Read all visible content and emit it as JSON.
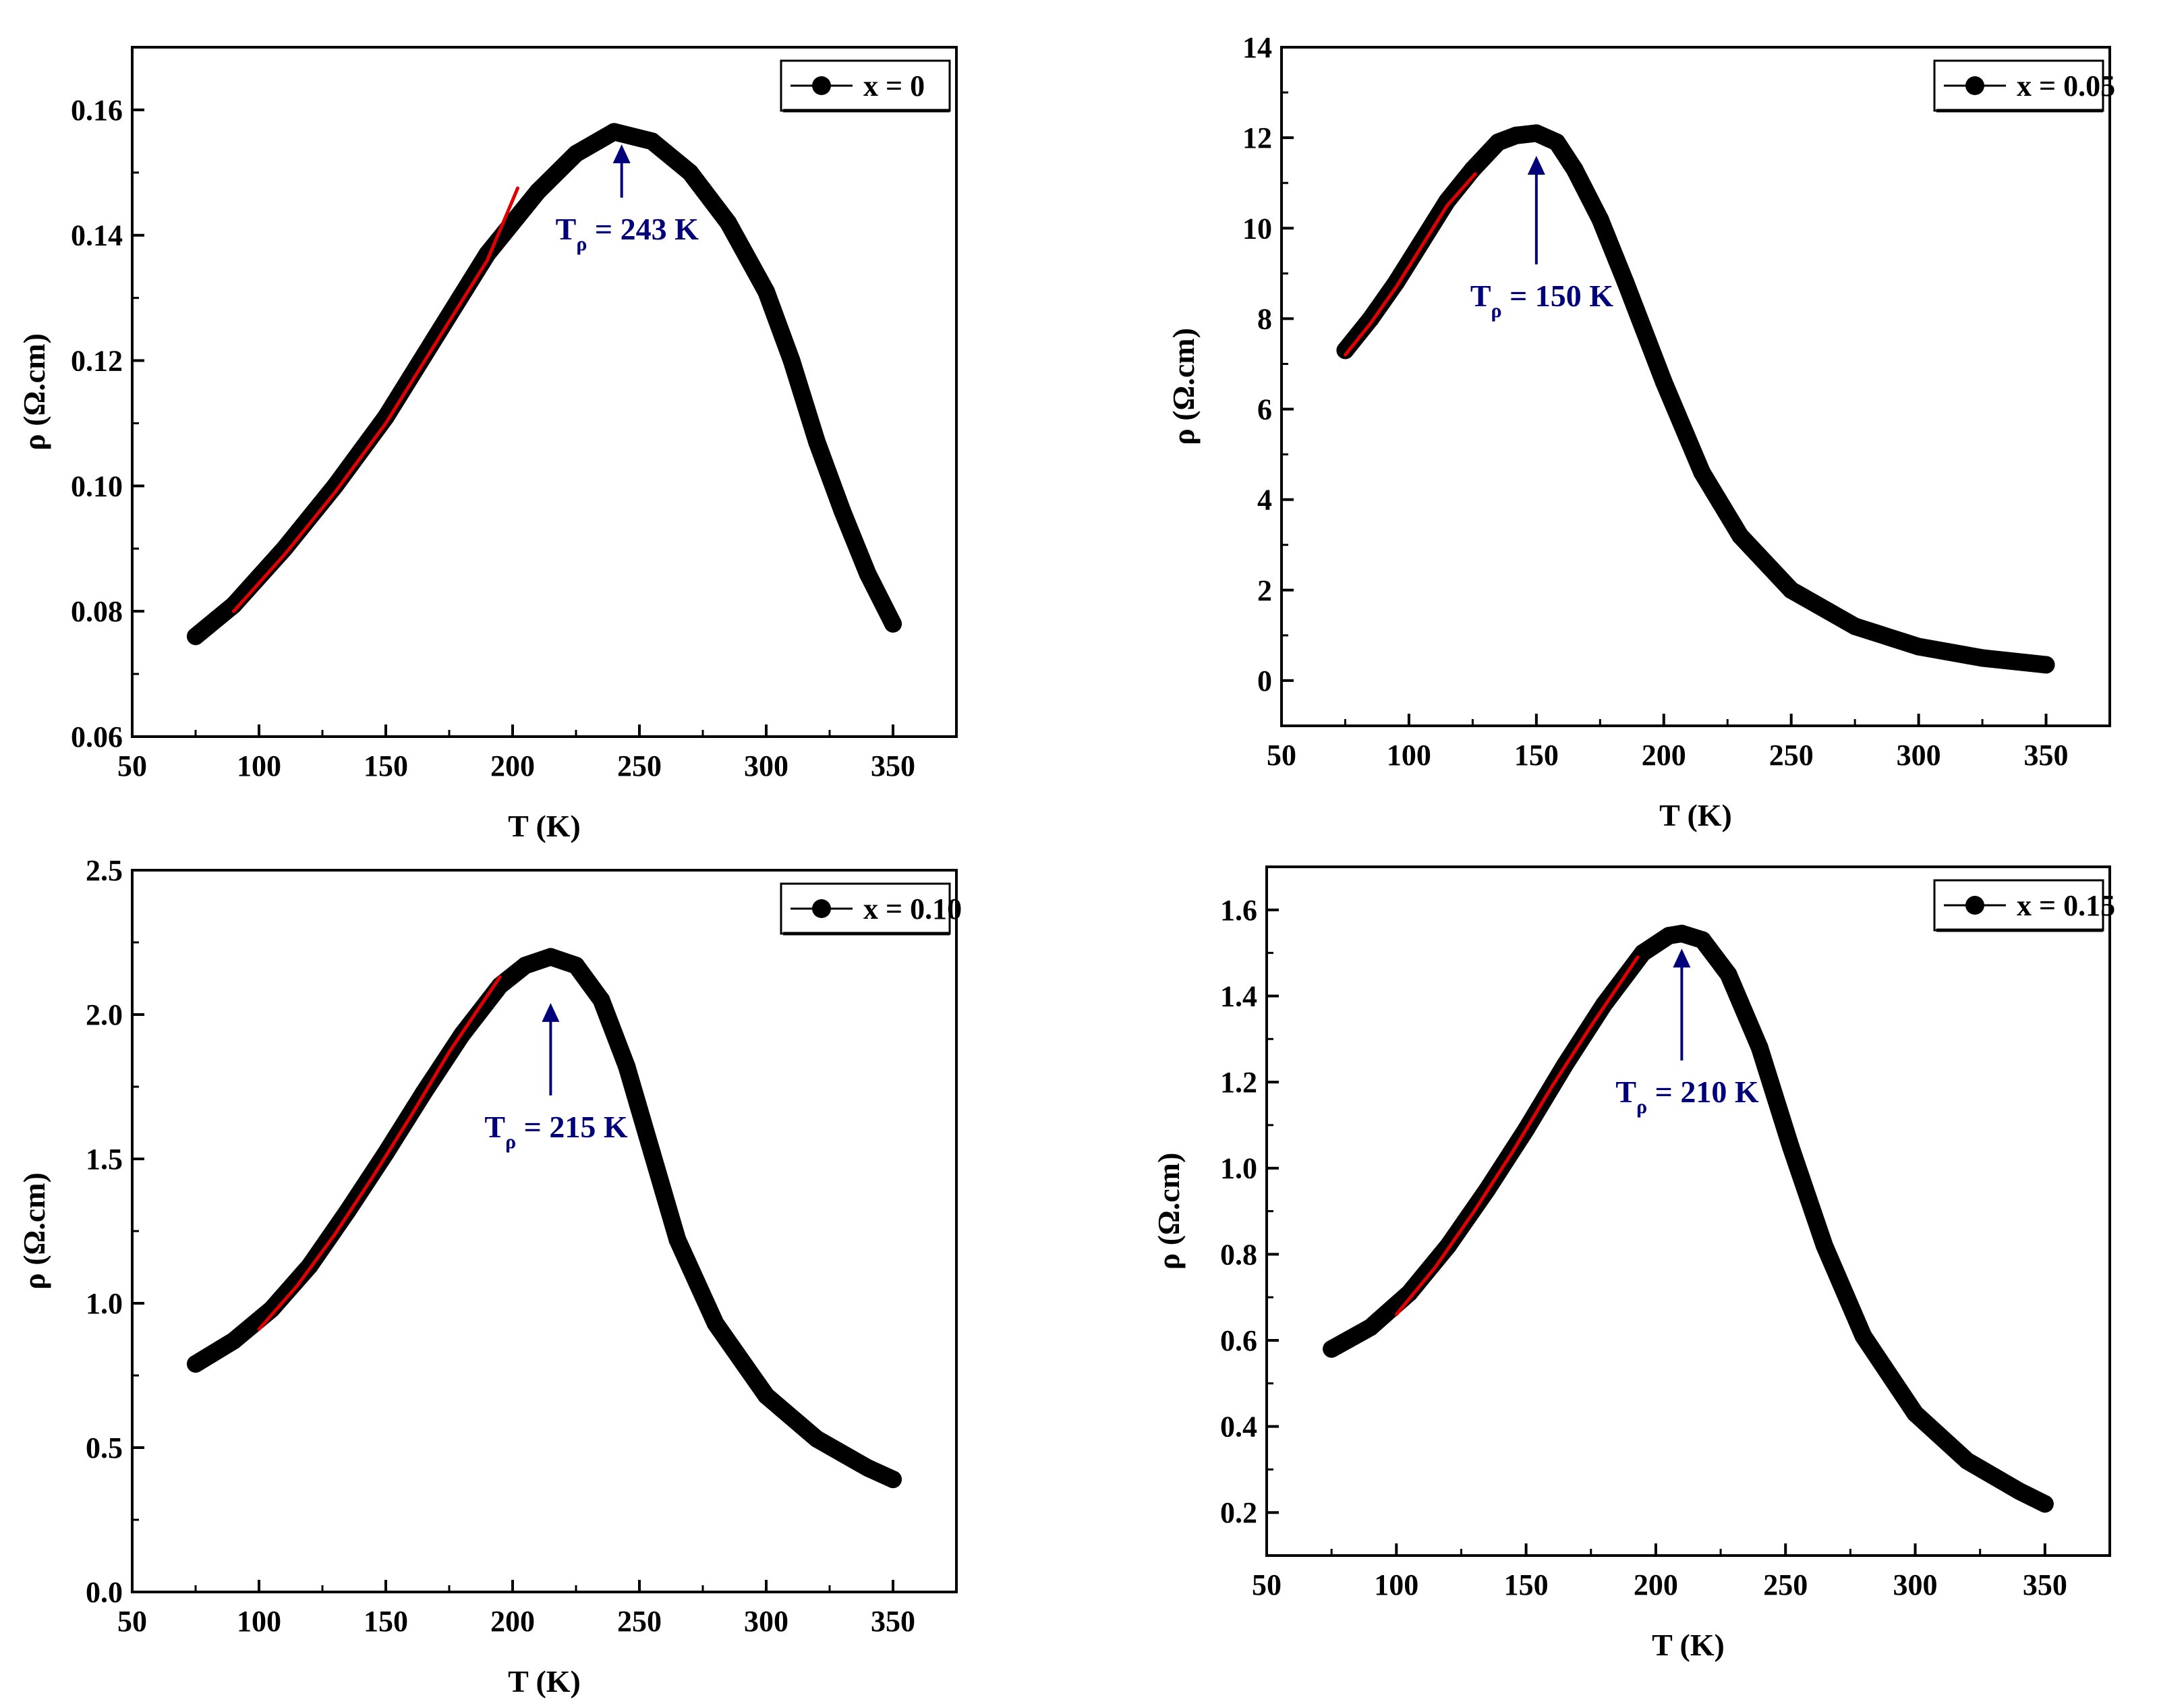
{
  "colors": {
    "data": "#000000",
    "fit_line": "#e00000",
    "annotation": "#00007a",
    "axes": "#000000",
    "background": "#ffffff"
  },
  "chart_data": [
    {
      "type": "line",
      "panel": "top-left",
      "legend": "x = 0",
      "legend_position": "top-right",
      "xlabel": "T (K)",
      "ylabel": "ρ (Ω.cm)",
      "xlim": [
        50,
        375
      ],
      "ylim": [
        0.06,
        0.17
      ],
      "xticks": [
        50,
        100,
        150,
        200,
        250,
        300,
        350
      ],
      "yticks": [
        0.06,
        0.08,
        0.1,
        0.12,
        0.14,
        0.16
      ],
      "ytick_labels": [
        "0.06",
        "0.08",
        "0.10",
        "0.12",
        "0.14",
        "0.16"
      ],
      "series": [
        {
          "name": "x = 0",
          "x": [
            75,
            90,
            110,
            130,
            150,
            170,
            190,
            210,
            225,
            240,
            255,
            270,
            285,
            300,
            310,
            320,
            330,
            340,
            350
          ],
          "y": [
            0.076,
            0.081,
            0.09,
            0.1,
            0.111,
            0.124,
            0.137,
            0.147,
            0.153,
            0.1565,
            0.155,
            0.15,
            0.142,
            0.131,
            0.12,
            0.107,
            0.096,
            0.086,
            0.078
          ]
        }
      ],
      "fit": {
        "x": [
          90,
          110,
          130,
          150,
          170,
          190,
          202
        ],
        "y": [
          0.08,
          0.089,
          0.099,
          0.11,
          0.123,
          0.136,
          0.1475
        ]
      },
      "annotation": {
        "main": "T",
        "sub": "ρ",
        "rest": " = 243 K",
        "arrow_x": 243,
        "arrow_from_y": 0.146,
        "arrow_to_y": 0.1545
      }
    },
    {
      "type": "line",
      "panel": "top-right",
      "legend": "x = 0.05",
      "legend_position": "top-right",
      "xlabel": "T (K)",
      "ylabel": "ρ (Ω.cm)",
      "xlim": [
        50,
        375
      ],
      "ylim": [
        -1,
        14
      ],
      "xticks": [
        50,
        100,
        150,
        200,
        250,
        300,
        350
      ],
      "yticks": [
        0,
        2,
        4,
        6,
        8,
        10,
        12,
        14
      ],
      "ytick_labels": [
        "0",
        "2",
        "4",
        "6",
        "8",
        "10",
        "12",
        "14"
      ],
      "series": [
        {
          "name": "x = 0.05",
          "x": [
            75,
            85,
            95,
            105,
            115,
            125,
            135,
            142,
            150,
            158,
            165,
            175,
            185,
            200,
            215,
            230,
            250,
            275,
            300,
            325,
            350
          ],
          "y": [
            7.3,
            8.0,
            8.8,
            9.7,
            10.6,
            11.3,
            11.9,
            12.05,
            12.1,
            11.9,
            11.3,
            10.2,
            8.8,
            6.6,
            4.6,
            3.2,
            2.0,
            1.2,
            0.75,
            0.5,
            0.35
          ]
        }
      ],
      "fit": {
        "x": [
          75,
          85,
          95,
          105,
          115,
          126
        ],
        "y": [
          7.2,
          7.9,
          8.7,
          9.6,
          10.5,
          11.2
        ]
      },
      "annotation": {
        "main": "T",
        "sub": "ρ",
        "rest": " = 150 K",
        "arrow_x": 150,
        "arrow_from_y": 9.2,
        "arrow_to_y": 11.6
      }
    },
    {
      "type": "line",
      "panel": "bottom-left",
      "legend": "x = 0.10",
      "legend_position": "top-right",
      "xlabel": "T (K)",
      "ylabel": "ρ (Ω.cm)",
      "xlim": [
        50,
        375
      ],
      "ylim": [
        0.0,
        2.5
      ],
      "xticks": [
        50,
        100,
        150,
        200,
        250,
        300,
        350
      ],
      "yticks": [
        0.0,
        0.5,
        1.0,
        1.5,
        2.0,
        2.5
      ],
      "ytick_labels": [
        "0.0",
        "0.5",
        "1.0",
        "1.5",
        "2.0",
        "2.5"
      ],
      "series": [
        {
          "name": "x = 0.10",
          "x": [
            75,
            90,
            105,
            120,
            135,
            150,
            165,
            180,
            195,
            205,
            215,
            225,
            235,
            245,
            255,
            265,
            280,
            300,
            320,
            340,
            350
          ],
          "y": [
            0.79,
            0.87,
            0.98,
            1.13,
            1.32,
            1.52,
            1.73,
            1.93,
            2.1,
            2.17,
            2.2,
            2.17,
            2.05,
            1.82,
            1.52,
            1.22,
            0.93,
            0.68,
            0.53,
            0.43,
            0.39
          ]
        }
      ],
      "fit": {
        "x": [
          100,
          115,
          130,
          145,
          160,
          175,
          195
        ],
        "y": [
          0.91,
          1.06,
          1.24,
          1.44,
          1.65,
          1.87,
          2.13
        ]
      },
      "annotation": {
        "main": "T",
        "sub": "ρ",
        "rest": " = 215  K",
        "arrow_x": 215,
        "arrow_from_y": 1.72,
        "arrow_to_y": 2.04
      }
    },
    {
      "type": "line",
      "panel": "bottom-right",
      "legend": "x = 0.15",
      "legend_position": "top-right",
      "xlabel": "T (K)",
      "ylabel": "ρ (Ω.cm)",
      "xlim": [
        50,
        375
      ],
      "ylim": [
        0.1,
        1.7
      ],
      "xticks": [
        50,
        100,
        150,
        200,
        250,
        300,
        350
      ],
      "yticks": [
        0.2,
        0.4,
        0.6,
        0.8,
        1.0,
        1.2,
        1.4,
        1.6
      ],
      "ytick_labels": [
        "0.2",
        "0.4",
        "0.6",
        "0.8",
        "1.0",
        "1.2",
        "1.4",
        "1.6"
      ],
      "series": [
        {
          "name": "x = 0.15",
          "x": [
            75,
            90,
            105,
            120,
            135,
            150,
            165,
            180,
            195,
            205,
            210,
            218,
            228,
            240,
            252,
            265,
            280,
            300,
            320,
            340,
            350
          ],
          "y": [
            0.58,
            0.63,
            0.71,
            0.82,
            0.95,
            1.09,
            1.24,
            1.38,
            1.5,
            1.54,
            1.545,
            1.53,
            1.45,
            1.28,
            1.05,
            0.82,
            0.61,
            0.43,
            0.32,
            0.25,
            0.22
          ]
        }
      ],
      "fit": {
        "x": [
          100,
          115,
          130,
          145,
          160,
          175,
          193
        ],
        "y": [
          0.66,
          0.77,
          0.9,
          1.04,
          1.19,
          1.33,
          1.49
        ]
      },
      "annotation": {
        "main": "T",
        "sub": "ρ",
        "rest": " = 210 K",
        "arrow_x": 210,
        "arrow_from_y": 1.25,
        "arrow_to_y": 1.51
      }
    }
  ]
}
